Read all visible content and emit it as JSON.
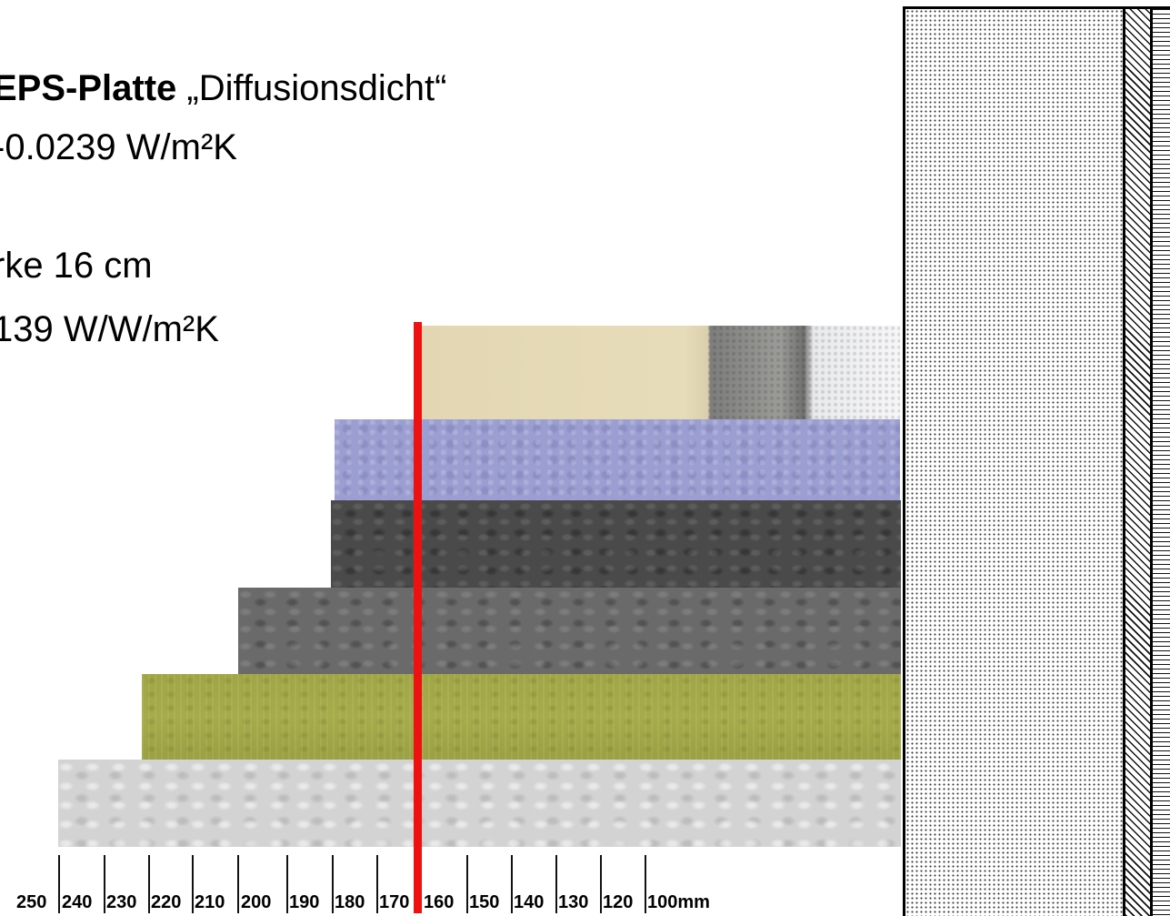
{
  "heading": {
    "title_bold": "EPS-Platte",
    "title_rest": " „Diffusionsdicht“",
    "lambda_text": "-0.0239 W/m²K",
    "thickness_text": "rke 16 cm",
    "u_value_text": "139 W/W/m²K"
  },
  "layers": [
    {
      "name": "beige-foam-board",
      "color": "#e3d7b3"
    },
    {
      "name": "blue-eps-board",
      "color": "#9b9ed0"
    },
    {
      "name": "dark-grey-eps-board",
      "color": "#4a4a4a"
    },
    {
      "name": "grey-eps-board",
      "color": "#6a6a6a"
    },
    {
      "name": "mineral-wool-board",
      "color": "#a3a848"
    },
    {
      "name": "white-eps-board",
      "color": "#d3d3d3"
    }
  ],
  "marker": {
    "color": "#ee1111"
  },
  "scale": {
    "labels": [
      "250",
      "240",
      "230",
      "220",
      "210",
      "200",
      "190",
      "180",
      "170",
      "160",
      "150",
      "140",
      "130",
      "120",
      "100mm"
    ]
  }
}
